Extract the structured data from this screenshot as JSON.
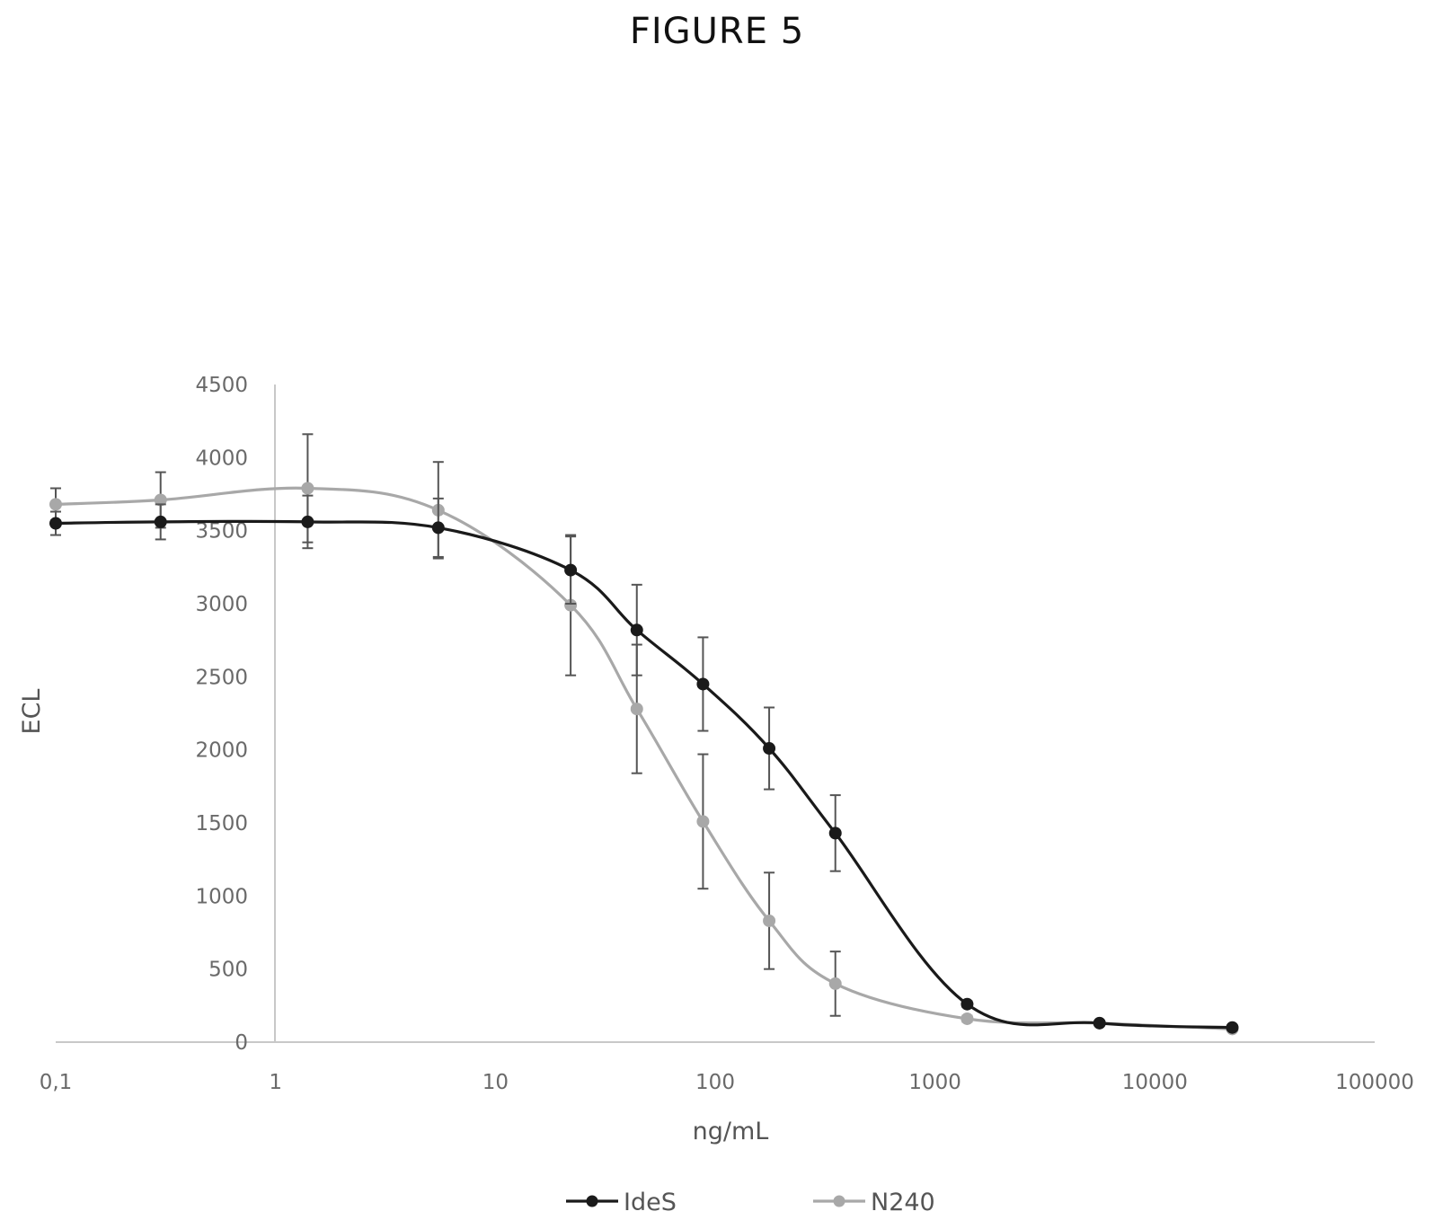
{
  "figure_label": "FIGURE 5",
  "chart_data": {
    "type": "line",
    "xscale": "log",
    "xlim": [
      0.1,
      100000
    ],
    "ylim": [
      0,
      4500
    ],
    "xlabel": "ng/mL",
    "ylabel": "ECL",
    "x_ticks": [
      {
        "value": 0.1,
        "label": "0,1"
      },
      {
        "value": 1,
        "label": "1"
      },
      {
        "value": 10,
        "label": "10"
      },
      {
        "value": 100,
        "label": "100"
      },
      {
        "value": 1000,
        "label": "1000"
      },
      {
        "value": 10000,
        "label": "10000"
      },
      {
        "value": 100000,
        "label": "100000"
      }
    ],
    "y_ticks": [
      {
        "value": 0,
        "label": "0"
      },
      {
        "value": 500,
        "label": "500"
      },
      {
        "value": 1000,
        "label": "1000"
      },
      {
        "value": 1500,
        "label": "1500"
      },
      {
        "value": 2000,
        "label": "2000"
      },
      {
        "value": 2500,
        "label": "2500"
      },
      {
        "value": 3000,
        "label": "3000"
      },
      {
        "value": 3500,
        "label": "3500"
      },
      {
        "value": 4000,
        "label": "4000"
      },
      {
        "value": 4500,
        "label": "4500"
      }
    ],
    "grid": false,
    "legend_position": "bottom",
    "series": [
      {
        "name": "IdeS",
        "color": "#1a1a1a",
        "points": [
          {
            "x": 0.1,
            "y": 3550,
            "err": 80
          },
          {
            "x": 0.3,
            "y": 3560,
            "err": 120
          },
          {
            "x": 1.4,
            "y": 3560,
            "err": 180
          },
          {
            "x": 5.5,
            "y": 3520,
            "err": 200
          },
          {
            "x": 22,
            "y": 3230,
            "err": 230
          },
          {
            "x": 44,
            "y": 2820,
            "err": 310
          },
          {
            "x": 88,
            "y": 2450,
            "err": 320
          },
          {
            "x": 176,
            "y": 2010,
            "err": 280
          },
          {
            "x": 352,
            "y": 1430,
            "err": 260
          },
          {
            "x": 1400,
            "y": 260,
            "err": 20
          },
          {
            "x": 5600,
            "y": 130,
            "err": 15
          },
          {
            "x": 22500,
            "y": 100,
            "err": 10
          }
        ]
      },
      {
        "name": "N240",
        "color": "#a8a8a8",
        "points": [
          {
            "x": 0.1,
            "y": 3680,
            "err": 110
          },
          {
            "x": 0.3,
            "y": 3710,
            "err": 190
          },
          {
            "x": 1.4,
            "y": 3790,
            "err": 370
          },
          {
            "x": 5.5,
            "y": 3640,
            "err": 330
          },
          {
            "x": 22,
            "y": 2990,
            "err": 480
          },
          {
            "x": 44,
            "y": 2280,
            "err": 440
          },
          {
            "x": 88,
            "y": 1510,
            "err": 460
          },
          {
            "x": 176,
            "y": 830,
            "err": 330
          },
          {
            "x": 352,
            "y": 400,
            "err": 220
          },
          {
            "x": 1400,
            "y": 160,
            "err": 20
          },
          {
            "x": 5600,
            "y": 130,
            "err": 15
          },
          {
            "x": 22500,
            "y": 90,
            "err": 10
          }
        ]
      }
    ]
  }
}
